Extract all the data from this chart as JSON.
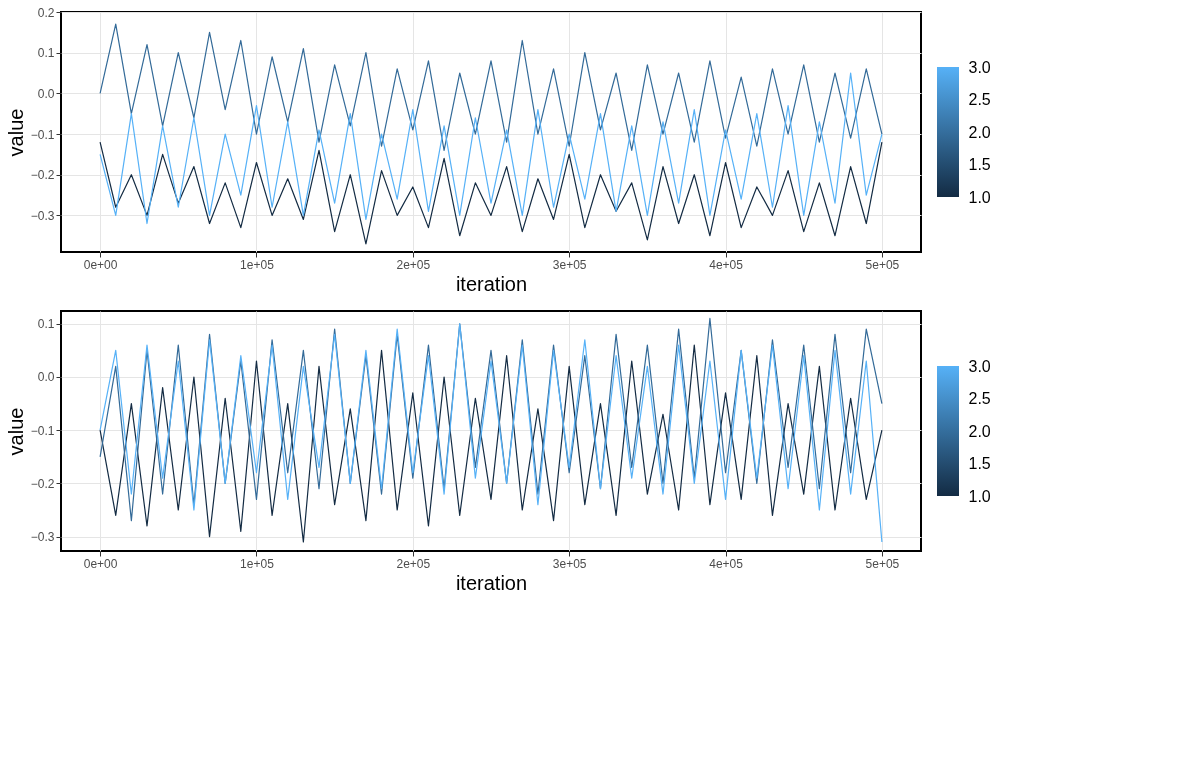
{
  "chart_data": [
    {
      "type": "line",
      "xlabel": "iteration",
      "ylabel": "value",
      "grid": true,
      "clim": [
        1.0,
        3.0
      ],
      "cticks": [
        {
          "value": 1.0,
          "label": "1.0"
        },
        {
          "value": 1.5,
          "label": "1.5"
        },
        {
          "value": 2.0,
          "label": "2.0"
        },
        {
          "value": 2.5,
          "label": "2.5"
        },
        {
          "value": 3.0,
          "label": "3.0"
        }
      ],
      "xlim": [
        -25000,
        525000
      ],
      "ylim": [
        -0.39,
        0.2
      ],
      "xticks": [
        {
          "value": 0,
          "label": "0e+00"
        },
        {
          "value": 100000,
          "label": "1e+05"
        },
        {
          "value": 200000,
          "label": "2e+05"
        },
        {
          "value": 300000,
          "label": "3e+05"
        },
        {
          "value": 400000,
          "label": "4e+05"
        },
        {
          "value": 500000,
          "label": "5e+05"
        }
      ],
      "yticks": [
        -0.3,
        -0.2,
        -0.1,
        {
          "value": 0,
          "label": "0.0"
        },
        0.1,
        0.2
      ],
      "x": [
        0,
        10000,
        20000,
        30000,
        40000,
        50000,
        60000,
        70000,
        80000,
        90000,
        100000,
        110000,
        120000,
        130000,
        140000,
        150000,
        160000,
        170000,
        180000,
        190000,
        200000,
        210000,
        220000,
        230000,
        240000,
        250000,
        260000,
        270000,
        280000,
        290000,
        300000,
        310000,
        320000,
        330000,
        340000,
        350000,
        360000,
        370000,
        380000,
        390000,
        400000,
        410000,
        420000,
        430000,
        440000,
        450000,
        460000,
        470000,
        480000,
        490000,
        500000
      ],
      "series": [
        {
          "color": "#132b43",
          "values": [
            -0.12,
            -0.28,
            -0.2,
            -0.3,
            -0.15,
            -0.27,
            -0.18,
            -0.32,
            -0.22,
            -0.33,
            -0.17,
            -0.3,
            -0.21,
            -0.31,
            -0.14,
            -0.34,
            -0.2,
            -0.37,
            -0.19,
            -0.3,
            -0.23,
            -0.33,
            -0.16,
            -0.35,
            -0.22,
            -0.3,
            -0.18,
            -0.34,
            -0.21,
            -0.31,
            -0.15,
            -0.33,
            -0.2,
            -0.29,
            -0.22,
            -0.36,
            -0.18,
            -0.32,
            -0.2,
            -0.35,
            -0.17,
            -0.33,
            -0.23,
            -0.3,
            -0.19,
            -0.34,
            -0.22,
            -0.35,
            -0.18,
            -0.32,
            -0.12
          ]
        },
        {
          "color": "#336a98",
          "values": [
            0.0,
            0.17,
            -0.05,
            0.12,
            -0.08,
            0.1,
            -0.06,
            0.15,
            -0.04,
            0.13,
            -0.1,
            0.09,
            -0.07,
            0.11,
            -0.12,
            0.07,
            -0.08,
            0.1,
            -0.13,
            0.06,
            -0.09,
            0.08,
            -0.14,
            0.05,
            -0.1,
            0.08,
            -0.12,
            0.13,
            -0.1,
            0.06,
            -0.13,
            0.1,
            -0.09,
            0.05,
            -0.14,
            0.07,
            -0.1,
            0.05,
            -0.12,
            0.08,
            -0.11,
            0.04,
            -0.13,
            0.06,
            -0.1,
            0.07,
            -0.12,
            0.05,
            -0.11,
            0.06,
            -0.1
          ]
        },
        {
          "color": "#56b1f7",
          "values": [
            -0.15,
            -0.3,
            -0.05,
            -0.32,
            -0.08,
            -0.28,
            -0.06,
            -0.3,
            -0.1,
            -0.25,
            -0.03,
            -0.28,
            -0.07,
            -0.3,
            -0.09,
            -0.27,
            -0.05,
            -0.31,
            -0.1,
            -0.26,
            -0.04,
            -0.29,
            -0.08,
            -0.3,
            -0.06,
            -0.27,
            -0.09,
            -0.3,
            -0.04,
            -0.28,
            -0.1,
            -0.26,
            -0.05,
            -0.29,
            -0.08,
            -0.3,
            -0.07,
            -0.27,
            -0.04,
            -0.3,
            -0.09,
            -0.26,
            -0.05,
            -0.28,
            -0.03,
            -0.3,
            -0.07,
            -0.27,
            0.05,
            -0.25,
            -0.1
          ]
        }
      ]
    },
    {
      "type": "line",
      "xlabel": "iteration",
      "ylabel": "value",
      "grid": true,
      "clim": [
        1.0,
        3.0
      ],
      "cticks": [
        {
          "value": 1.0,
          "label": "1.0"
        },
        {
          "value": 1.5,
          "label": "1.5"
        },
        {
          "value": 2.0,
          "label": "2.0"
        },
        {
          "value": 2.5,
          "label": "2.5"
        },
        {
          "value": 3.0,
          "label": "3.0"
        }
      ],
      "xlim": [
        -25000,
        525000
      ],
      "ylim": [
        -0.327,
        0.124
      ],
      "xticks": [
        {
          "value": 0,
          "label": "0e+00"
        },
        {
          "value": 100000,
          "label": "1e+05"
        },
        {
          "value": 200000,
          "label": "2e+05"
        },
        {
          "value": 300000,
          "label": "3e+05"
        },
        {
          "value": 400000,
          "label": "4e+05"
        },
        {
          "value": 500000,
          "label": "5e+05"
        }
      ],
      "yticks": [
        -0.3,
        -0.2,
        -0.1,
        {
          "value": 0,
          "label": "0.0"
        },
        0.1
      ],
      "x": [
        0,
        10000,
        20000,
        30000,
        40000,
        50000,
        60000,
        70000,
        80000,
        90000,
        100000,
        110000,
        120000,
        130000,
        140000,
        150000,
        160000,
        170000,
        180000,
        190000,
        200000,
        210000,
        220000,
        230000,
        240000,
        250000,
        260000,
        270000,
        280000,
        290000,
        300000,
        310000,
        320000,
        330000,
        340000,
        350000,
        360000,
        370000,
        380000,
        390000,
        400000,
        410000,
        420000,
        430000,
        440000,
        450000,
        460000,
        470000,
        480000,
        490000,
        500000
      ],
      "series": [
        {
          "color": "#132b43",
          "values": [
            -0.1,
            -0.26,
            -0.05,
            -0.28,
            -0.02,
            -0.25,
            0.0,
            -0.3,
            -0.04,
            -0.29,
            0.03,
            -0.26,
            -0.05,
            -0.31,
            0.02,
            -0.24,
            -0.06,
            -0.27,
            0.05,
            -0.25,
            -0.03,
            -0.28,
            0.0,
            -0.26,
            -0.04,
            -0.23,
            0.04,
            -0.25,
            -0.06,
            -0.27,
            0.02,
            -0.24,
            -0.05,
            -0.26,
            0.03,
            -0.22,
            -0.07,
            -0.25,
            0.06,
            -0.24,
            -0.03,
            -0.23,
            0.04,
            -0.26,
            -0.05,
            -0.22,
            0.02,
            -0.25,
            -0.04,
            -0.23,
            -0.1
          ]
        },
        {
          "color": "#336a98",
          "values": [
            -0.15,
            0.02,
            -0.27,
            0.05,
            -0.22,
            0.06,
            -0.24,
            0.08,
            -0.2,
            0.03,
            -0.23,
            0.07,
            -0.18,
            0.05,
            -0.21,
            0.09,
            -0.2,
            0.04,
            -0.22,
            0.08,
            -0.19,
            0.06,
            -0.21,
            0.1,
            -0.17,
            0.05,
            -0.2,
            0.07,
            -0.22,
            0.06,
            -0.18,
            0.04,
            -0.21,
            0.08,
            -0.17,
            0.06,
            -0.2,
            0.09,
            -0.19,
            0.11,
            -0.18,
            0.05,
            -0.2,
            0.07,
            -0.17,
            0.06,
            -0.21,
            0.08,
            -0.18,
            0.09,
            -0.05
          ]
        },
        {
          "color": "#56b1f7",
          "values": [
            -0.1,
            0.05,
            -0.22,
            0.06,
            -0.19,
            0.03,
            -0.25,
            0.07,
            -0.2,
            0.04,
            -0.18,
            0.06,
            -0.23,
            0.02,
            -0.17,
            0.08,
            -0.2,
            0.05,
            -0.21,
            0.09,
            -0.18,
            0.04,
            -0.22,
            0.1,
            -0.19,
            0.03,
            -0.2,
            0.06,
            -0.24,
            0.05,
            -0.17,
            0.07,
            -0.21,
            0.04,
            -0.19,
            0.02,
            -0.22,
            0.06,
            -0.2,
            0.03,
            -0.23,
            0.05,
            -0.19,
            0.06,
            -0.21,
            0.04,
            -0.25,
            0.05,
            -0.22,
            0.03,
            -0.31
          ]
        }
      ]
    }
  ]
}
